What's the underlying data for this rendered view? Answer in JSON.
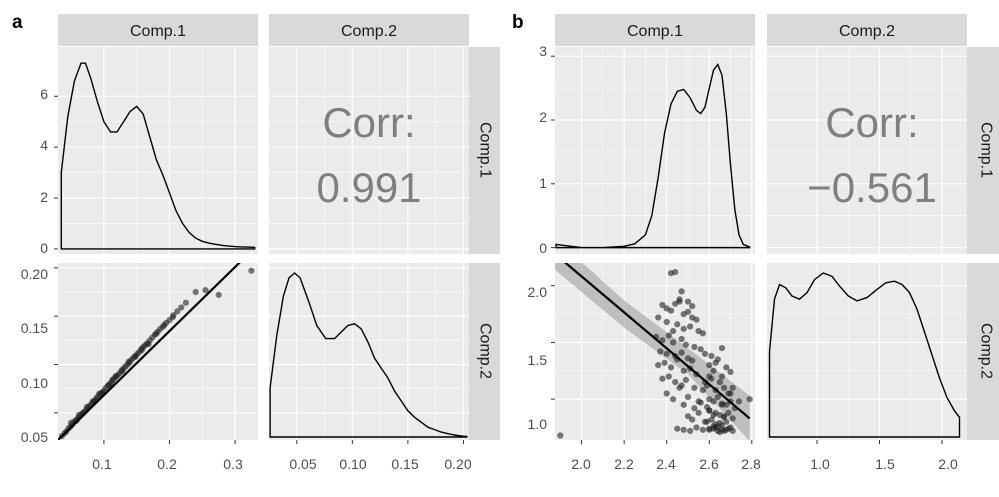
{
  "panels": [
    {
      "letter": "a"
    },
    {
      "letter": "b"
    }
  ],
  "chart_data": [
    {
      "type": "scatter",
      "panel": "a",
      "variables": [
        "Comp.1",
        "Comp.2"
      ],
      "strip_color": "#d9d9d9",
      "panel_background": "#ebebeb",
      "grid": true,
      "density_Comp1": {
        "type": "line",
        "x_ticks": [
          "0.1",
          "0.2",
          "0.3"
        ],
        "xlim": [
          0.03,
          0.335
        ],
        "y_ticks": [
          "0",
          "2",
          "4",
          "6"
        ],
        "ylim": [
          -0.2,
          7.7
        ],
        "x": [
          0.035,
          0.045,
          0.055,
          0.065,
          0.072,
          0.08,
          0.09,
          0.1,
          0.11,
          0.12,
          0.13,
          0.14,
          0.15,
          0.16,
          0.17,
          0.18,
          0.19,
          0.2,
          0.21,
          0.22,
          0.23,
          0.24,
          0.25,
          0.26,
          0.27,
          0.28,
          0.29,
          0.3,
          0.31,
          0.32,
          0.33
        ],
        "y": [
          3.0,
          5.2,
          6.6,
          7.3,
          7.3,
          6.7,
          5.8,
          5.0,
          4.6,
          4.6,
          5.0,
          5.4,
          5.6,
          5.3,
          4.4,
          3.5,
          2.9,
          2.2,
          1.5,
          1.0,
          0.65,
          0.42,
          0.3,
          0.23,
          0.18,
          0.14,
          0.11,
          0.09,
          0.08,
          0.07,
          0.06
        ],
        "baseline_start": 0.035
      },
      "correlation": {
        "label": "Corr:",
        "value": "0.991",
        "xlim": [
          0.025,
          0.205
        ]
      },
      "scatter": {
        "x_ticks": [
          "0.1",
          "0.2",
          "0.3"
        ],
        "xlim": [
          0.03,
          0.335
        ],
        "y_ticks": [
          "0.05",
          "0.10",
          "0.15",
          "0.20"
        ],
        "ylim": [
          0.022,
          0.205
        ],
        "x": [
          0.036,
          0.04,
          0.043,
          0.046,
          0.049,
          0.052,
          0.055,
          0.058,
          0.061,
          0.064,
          0.067,
          0.07,
          0.073,
          0.076,
          0.079,
          0.082,
          0.085,
          0.088,
          0.091,
          0.094,
          0.097,
          0.1,
          0.103,
          0.106,
          0.109,
          0.112,
          0.115,
          0.118,
          0.121,
          0.124,
          0.127,
          0.13,
          0.133,
          0.136,
          0.139,
          0.142,
          0.145,
          0.148,
          0.151,
          0.154,
          0.157,
          0.16,
          0.163,
          0.166,
          0.17,
          0.174,
          0.178,
          0.182,
          0.186,
          0.19,
          0.195,
          0.2,
          0.206,
          0.212,
          0.218,
          0.225,
          0.24,
          0.255,
          0.275,
          0.325,
          0.062,
          0.074,
          0.088,
          0.098,
          0.108,
          0.118,
          0.128,
          0.138,
          0.148,
          0.158,
          0.168,
          0.18,
          0.192,
          0.205,
          0.05,
          0.058,
          0.068,
          0.083,
          0.093,
          0.113
        ],
        "y": [
          0.026,
          0.029,
          0.031,
          0.034,
          0.036,
          0.038,
          0.041,
          0.042,
          0.045,
          0.047,
          0.049,
          0.051,
          0.053,
          0.056,
          0.058,
          0.06,
          0.062,
          0.065,
          0.067,
          0.069,
          0.071,
          0.073,
          0.076,
          0.078,
          0.08,
          0.082,
          0.085,
          0.087,
          0.089,
          0.091,
          0.094,
          0.096,
          0.098,
          0.1,
          0.102,
          0.105,
          0.107,
          0.109,
          0.111,
          0.113,
          0.116,
          0.118,
          0.12,
          0.122,
          0.125,
          0.128,
          0.131,
          0.134,
          0.137,
          0.139,
          0.143,
          0.146,
          0.151,
          0.155,
          0.159,
          0.164,
          0.175,
          0.177,
          0.172,
          0.197,
          0.048,
          0.056,
          0.063,
          0.071,
          0.079,
          0.088,
          0.093,
          0.103,
          0.108,
          0.115,
          0.121,
          0.132,
          0.141,
          0.149,
          0.04,
          0.043,
          0.05,
          0.062,
          0.07,
          0.084
        ],
        "fit_line": {
          "x": [
            0.03,
            0.335
          ],
          "y": [
            0.022,
            0.224
          ]
        }
      },
      "density_Comp2": {
        "type": "line",
        "x_ticks": [
          "0.05",
          "0.10",
          "0.15",
          "0.20"
        ],
        "xlim": [
          0.025,
          0.205
        ],
        "x": [
          0.026,
          0.032,
          0.038,
          0.043,
          0.048,
          0.053,
          0.06,
          0.068,
          0.076,
          0.084,
          0.09,
          0.096,
          0.102,
          0.108,
          0.114,
          0.12,
          0.126,
          0.132,
          0.138,
          0.144,
          0.15,
          0.156,
          0.162,
          0.168,
          0.174,
          0.18,
          0.186,
          0.192,
          0.198,
          0.203
        ],
        "y_rel": [
          0.3,
          0.62,
          0.86,
          0.97,
          1.0,
          0.97,
          0.84,
          0.68,
          0.6,
          0.6,
          0.64,
          0.68,
          0.69,
          0.66,
          0.58,
          0.48,
          0.42,
          0.36,
          0.28,
          0.22,
          0.16,
          0.12,
          0.09,
          0.06,
          0.045,
          0.03,
          0.02,
          0.012,
          0.006,
          0.003
        ],
        "baseline_start": 0.026
      }
    },
    {
      "type": "scatter",
      "panel": "b",
      "variables": [
        "Comp.1",
        "Comp.2"
      ],
      "strip_color": "#d9d9d9",
      "panel_background": "#ebebeb",
      "grid": true,
      "density_Comp1": {
        "type": "line",
        "x_ticks": [
          "2.0",
          "2.2",
          "2.4",
          "2.6",
          "2.8"
        ],
        "xlim": [
          1.875,
          2.815
        ],
        "y_ticks": [
          "0",
          "1",
          "2",
          "3"
        ],
        "ylim": [
          -0.1,
          3.05
        ],
        "x": [
          1.88,
          1.95,
          2.0,
          2.1,
          2.2,
          2.25,
          2.3,
          2.33,
          2.36,
          2.39,
          2.42,
          2.45,
          2.48,
          2.51,
          2.54,
          2.56,
          2.58,
          2.6,
          2.62,
          2.64,
          2.66,
          2.68,
          2.7,
          2.72,
          2.74,
          2.76,
          2.79
        ],
        "y": [
          0.05,
          0.02,
          0.0,
          0.0,
          0.02,
          0.06,
          0.2,
          0.5,
          1.1,
          1.8,
          2.25,
          2.45,
          2.48,
          2.35,
          2.15,
          2.1,
          2.2,
          2.5,
          2.78,
          2.87,
          2.7,
          2.1,
          1.3,
          0.6,
          0.2,
          0.05,
          0.01
        ],
        "baseline_start": 1.88
      },
      "correlation": {
        "label": "Corr:",
        "value": "−0.561",
        "xlim": [
          0.6,
          2.2
        ]
      },
      "scatter": {
        "x_ticks": [
          "2.0",
          "2.2",
          "2.4",
          "2.6",
          "2.8"
        ],
        "xlim": [
          1.875,
          2.815
        ],
        "y_ticks": [
          "1.0",
          "1.5",
          "2.0"
        ],
        "ylim": [
          0.64,
          2.2
        ],
        "x": [
          1.9,
          2.42,
          2.44,
          2.46,
          2.5,
          2.52,
          2.38,
          2.4,
          2.42,
          2.44,
          2.46,
          2.48,
          2.5,
          2.52,
          2.54,
          2.36,
          2.4,
          2.45,
          2.48,
          2.51,
          2.55,
          2.57,
          2.35,
          2.38,
          2.41,
          2.43,
          2.47,
          2.49,
          2.53,
          2.56,
          2.37,
          2.4,
          2.44,
          2.47,
          2.5,
          2.52,
          2.58,
          2.36,
          2.39,
          2.42,
          2.45,
          2.48,
          2.51,
          2.54,
          2.6,
          2.38,
          2.41,
          2.44,
          2.47,
          2.49,
          2.53,
          2.57,
          2.4,
          2.43,
          2.46,
          2.5,
          2.55,
          2.58,
          2.6,
          2.62,
          2.64,
          2.66,
          2.68,
          2.7,
          2.59,
          2.61,
          2.63,
          2.65,
          2.67,
          2.69,
          2.71,
          2.6,
          2.62,
          2.64,
          2.66,
          2.68,
          2.7,
          2.72,
          2.6,
          2.63,
          2.65,
          2.67,
          2.69,
          2.71,
          2.59,
          2.61,
          2.63,
          2.66,
          2.68,
          2.7,
          2.62,
          2.64,
          2.67,
          2.69,
          2.6,
          2.63,
          2.65,
          2.68,
          2.71,
          2.45,
          2.48,
          2.51,
          2.54,
          2.57,
          2.6,
          2.62,
          2.64,
          2.66,
          2.5,
          2.52,
          2.55,
          2.58,
          2.6,
          2.62,
          2.65,
          2.67,
          2.48,
          2.53,
          2.56,
          2.59,
          2.61,
          2.63,
          2.66,
          2.79,
          2.74,
          2.7,
          2.66,
          2.43,
          2.47
        ],
        "y": [
          0.68,
          2.11,
          2.12,
          1.88,
          1.86,
          1.82,
          1.83,
          1.8,
          1.78,
          1.84,
          1.86,
          1.75,
          1.77,
          1.72,
          1.7,
          1.72,
          1.68,
          1.66,
          1.62,
          1.64,
          1.6,
          1.58,
          1.55,
          1.52,
          1.56,
          1.5,
          1.53,
          1.48,
          1.46,
          1.44,
          1.42,
          1.4,
          1.38,
          1.41,
          1.36,
          1.34,
          1.4,
          1.3,
          1.32,
          1.28,
          1.35,
          1.25,
          1.27,
          1.22,
          1.2,
          1.18,
          1.2,
          1.15,
          1.12,
          1.17,
          1.1,
          1.08,
          1.05,
          1.0,
          1.1,
          1.02,
          0.98,
          1.15,
          1.3,
          1.25,
          1.35,
          1.2,
          1.28,
          1.24,
          1.12,
          1.18,
          1.08,
          1.15,
          1.1,
          1.05,
          1.1,
          1.0,
          0.98,
          1.02,
          0.96,
          0.95,
          0.98,
          0.92,
          0.9,
          0.88,
          0.86,
          0.85,
          0.88,
          0.83,
          0.8,
          0.82,
          0.78,
          0.77,
          0.8,
          0.75,
          0.74,
          0.76,
          0.72,
          0.74,
          0.73,
          0.75,
          0.71,
          0.73,
          0.72,
          0.74,
          0.73,
          0.72,
          0.75,
          0.73,
          0.74,
          0.76,
          0.72,
          0.73,
          0.85,
          0.82,
          0.88,
          0.8,
          0.9,
          0.86,
          0.79,
          0.84,
          0.95,
          0.92,
          0.97,
          0.93,
          1.38,
          1.32,
          1.45,
          1.0,
          0.98,
          1.05,
          0.95,
          1.6,
          1.95
        ],
        "fit_line": {
          "x": [
            1.875,
            2.79
          ],
          "y": [
            2.28,
            0.83
          ]
        },
        "confidence_band": {
          "x": [
            1.875,
            2.2,
            2.5,
            2.79
          ],
          "upper": [
            2.42,
            1.87,
            1.45,
            1.03
          ],
          "lower": [
            2.14,
            1.63,
            1.22,
            0.63
          ]
        }
      },
      "density_Comp2": {
        "type": "line",
        "x_ticks": [
          "1.0",
          "1.5",
          "2.0"
        ],
        "xlim": [
          0.6,
          2.2
        ],
        "x": [
          0.62,
          0.66,
          0.7,
          0.75,
          0.8,
          0.86,
          0.92,
          0.98,
          1.05,
          1.12,
          1.18,
          1.25,
          1.32,
          1.4,
          1.48,
          1.55,
          1.62,
          1.68,
          1.74,
          1.8,
          1.86,
          1.92,
          1.98,
          2.04,
          2.1,
          2.14
        ],
        "y_rel": [
          0.52,
          0.84,
          0.93,
          0.91,
          0.86,
          0.84,
          0.88,
          0.96,
          1.0,
          0.98,
          0.92,
          0.86,
          0.83,
          0.85,
          0.9,
          0.94,
          0.95,
          0.93,
          0.88,
          0.78,
          0.64,
          0.5,
          0.36,
          0.24,
          0.16,
          0.12
        ],
        "baseline_start": 0.62
      }
    }
  ]
}
